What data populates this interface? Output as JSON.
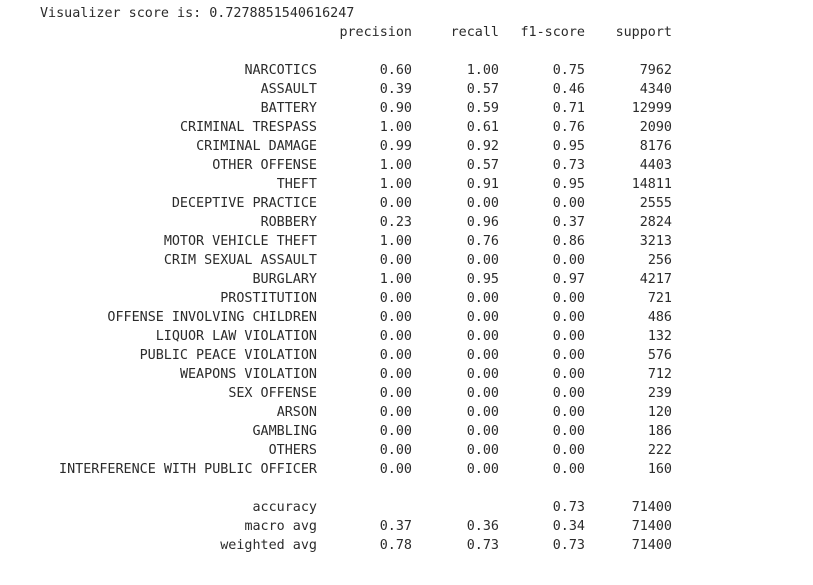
{
  "score_label": "Visualizer score is:",
  "score_value": "0.7278851540616247",
  "header": {
    "precision": "precision",
    "recall": "recall",
    "f1": "f1-score",
    "support": "support"
  },
  "classes": [
    {
      "label": "NARCOTICS",
      "precision": "0.60",
      "recall": "1.00",
      "f1": "0.75",
      "support": "7962"
    },
    {
      "label": "ASSAULT",
      "precision": "0.39",
      "recall": "0.57",
      "f1": "0.46",
      "support": "4340"
    },
    {
      "label": "BATTERY",
      "precision": "0.90",
      "recall": "0.59",
      "f1": "0.71",
      "support": "12999"
    },
    {
      "label": "CRIMINAL TRESPASS",
      "precision": "1.00",
      "recall": "0.61",
      "f1": "0.76",
      "support": "2090"
    },
    {
      "label": "CRIMINAL DAMAGE",
      "precision": "0.99",
      "recall": "0.92",
      "f1": "0.95",
      "support": "8176"
    },
    {
      "label": "OTHER OFFENSE",
      "precision": "1.00",
      "recall": "0.57",
      "f1": "0.73",
      "support": "4403"
    },
    {
      "label": "THEFT",
      "precision": "1.00",
      "recall": "0.91",
      "f1": "0.95",
      "support": "14811"
    },
    {
      "label": "DECEPTIVE PRACTICE",
      "precision": "0.00",
      "recall": "0.00",
      "f1": "0.00",
      "support": "2555"
    },
    {
      "label": "ROBBERY",
      "precision": "0.23",
      "recall": "0.96",
      "f1": "0.37",
      "support": "2824"
    },
    {
      "label": "MOTOR VEHICLE THEFT",
      "precision": "1.00",
      "recall": "0.76",
      "f1": "0.86",
      "support": "3213"
    },
    {
      "label": "CRIM SEXUAL ASSAULT",
      "precision": "0.00",
      "recall": "0.00",
      "f1": "0.00",
      "support": "256"
    },
    {
      "label": "BURGLARY",
      "precision": "1.00",
      "recall": "0.95",
      "f1": "0.97",
      "support": "4217"
    },
    {
      "label": "PROSTITUTION",
      "precision": "0.00",
      "recall": "0.00",
      "f1": "0.00",
      "support": "721"
    },
    {
      "label": "OFFENSE INVOLVING CHILDREN",
      "precision": "0.00",
      "recall": "0.00",
      "f1": "0.00",
      "support": "486"
    },
    {
      "label": "LIQUOR LAW VIOLATION",
      "precision": "0.00",
      "recall": "0.00",
      "f1": "0.00",
      "support": "132"
    },
    {
      "label": "PUBLIC PEACE VIOLATION",
      "precision": "0.00",
      "recall": "0.00",
      "f1": "0.00",
      "support": "576"
    },
    {
      "label": "WEAPONS VIOLATION",
      "precision": "0.00",
      "recall": "0.00",
      "f1": "0.00",
      "support": "712"
    },
    {
      "label": "SEX OFFENSE",
      "precision": "0.00",
      "recall": "0.00",
      "f1": "0.00",
      "support": "239"
    },
    {
      "label": "ARSON",
      "precision": "0.00",
      "recall": "0.00",
      "f1": "0.00",
      "support": "120"
    },
    {
      "label": "GAMBLING",
      "precision": "0.00",
      "recall": "0.00",
      "f1": "0.00",
      "support": "186"
    },
    {
      "label": "OTHERS",
      "precision": "0.00",
      "recall": "0.00",
      "f1": "0.00",
      "support": "222"
    },
    {
      "label": "INTERFERENCE WITH PUBLIC OFFICER",
      "precision": "0.00",
      "recall": "0.00",
      "f1": "0.00",
      "support": "160"
    }
  ],
  "summary": [
    {
      "label": "accuracy",
      "precision": "",
      "recall": "",
      "f1": "0.73",
      "support": "71400"
    },
    {
      "label": "macro avg",
      "precision": "0.37",
      "recall": "0.36",
      "f1": "0.34",
      "support": "71400"
    },
    {
      "label": "weighted avg",
      "precision": "0.78",
      "recall": "0.73",
      "f1": "0.73",
      "support": "71400"
    }
  ]
}
